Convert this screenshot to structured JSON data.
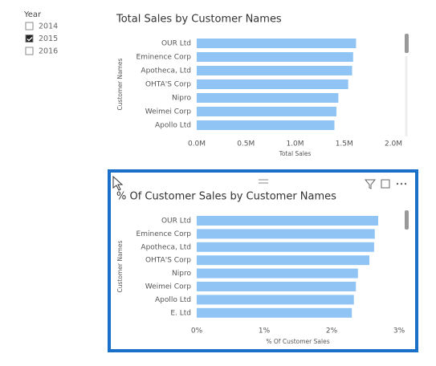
{
  "slicer": {
    "title": "Year",
    "items": [
      {
        "label": "2014",
        "checked": false
      },
      {
        "label": "2015",
        "checked": true
      },
      {
        "label": "2016",
        "checked": false
      }
    ]
  },
  "chart_data": [
    {
      "type": "bar",
      "orientation": "horizontal",
      "title": "Total Sales by Customer Names",
      "x_label": "Total Sales",
      "y_label": "Customer Names",
      "categories": [
        "OUR Ltd",
        "Eminence Corp",
        "Apotheca, Ltd",
        "OHTA'S Corp",
        "Nipro",
        "Weimei Corp",
        "Apollo Ltd"
      ],
      "values": [
        1620000,
        1590000,
        1580000,
        1540000,
        1440000,
        1420000,
        1400000
      ],
      "color": "#8fc4f5",
      "xlim": [
        0,
        2000000
      ],
      "xticks": [
        {
          "value": 0,
          "label": "0.0M"
        },
        {
          "value": 500000,
          "label": "0.5M"
        },
        {
          "value": 1000000,
          "label": "1.0M"
        },
        {
          "value": 1500000,
          "label": "1.5M"
        },
        {
          "value": 2000000,
          "label": "2.0M"
        }
      ],
      "grid": false,
      "selected": false
    },
    {
      "type": "bar",
      "orientation": "horizontal",
      "title": "% Of Customer Sales by Customer Names",
      "x_label": "% Of Customer Sales",
      "y_label": "Customer Names",
      "categories": [
        "OUR Ltd",
        "Eminence Corp",
        "Apotheca, Ltd",
        "OHTA'S Corp",
        "Nipro",
        "Weimei Corp",
        "Apollo Ltd",
        "E. Ltd"
      ],
      "values": [
        2.69,
        2.64,
        2.63,
        2.56,
        2.39,
        2.36,
        2.33,
        2.3
      ],
      "color": "#8fc4f5",
      "xlim": [
        0,
        3
      ],
      "xticks": [
        {
          "value": 0,
          "label": "0%"
        },
        {
          "value": 1,
          "label": "1%"
        },
        {
          "value": 2,
          "label": "2%"
        },
        {
          "value": 3,
          "label": "3%"
        }
      ],
      "grid": false,
      "selected": true
    }
  ]
}
